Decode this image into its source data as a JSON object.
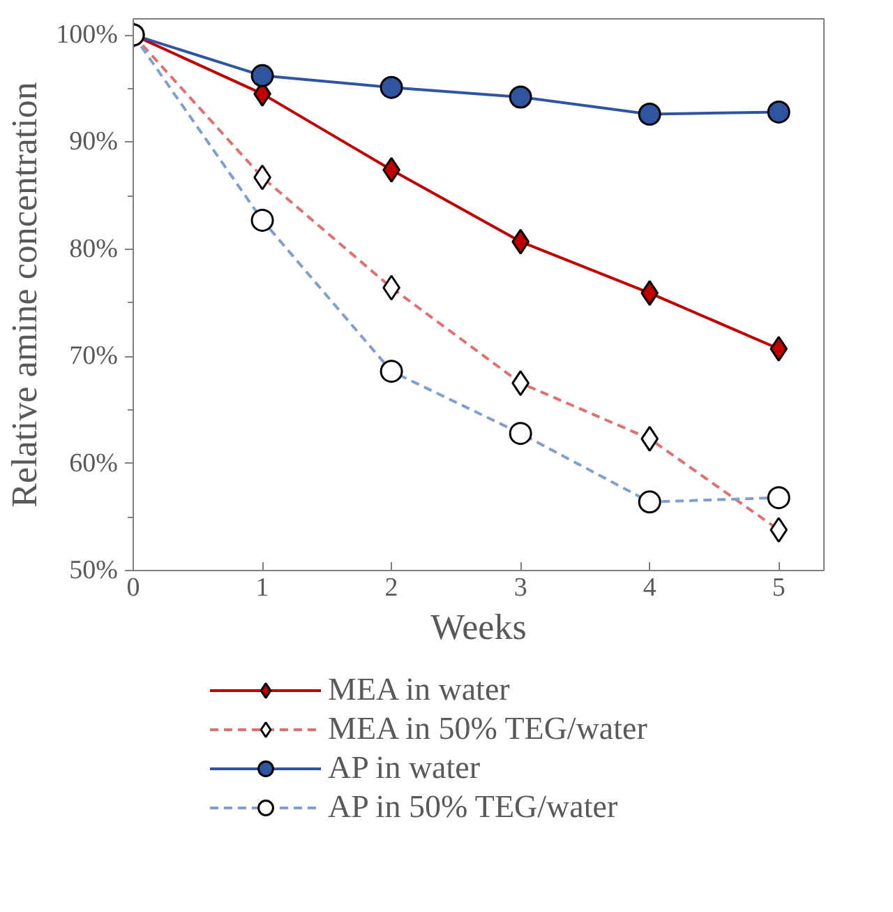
{
  "chart_data": {
    "type": "line",
    "xlabel": "Weeks",
    "ylabel": "Relative amine concentration",
    "x": [
      0,
      1,
      2,
      3,
      4,
      5
    ],
    "series": [
      {
        "name": "MEA in water",
        "color": "#c00000",
        "values": [
          100,
          94.5,
          87.4,
          80.7,
          75.9,
          70.7
        ],
        "marker": "diamond",
        "line_style": "solid"
      },
      {
        "name": "MEA in 50% TEG/water",
        "color": "#e07070",
        "values": [
          100,
          86.7,
          76.4,
          67.5,
          62.3,
          53.8
        ],
        "marker": "diamond",
        "line_style": "dashed"
      },
      {
        "name": "AP in water",
        "color": "#2f55a0",
        "values": [
          100,
          96.2,
          95.1,
          94.2,
          92.6,
          92.8
        ],
        "marker": "circle",
        "line_style": "solid"
      },
      {
        "name": "AP in 50% TEG/water",
        "color": "#7f9fd0",
        "values": [
          100,
          82.7,
          68.6,
          62.8,
          56.4,
          56.8
        ],
        "marker": "circle",
        "line_style": "dashed"
      }
    ],
    "xlim": [
      0,
      5.35
    ],
    "xticks": [
      0,
      1,
      2,
      3,
      4,
      5
    ],
    "ylim": [
      50,
      101.5
    ],
    "yticks": [
      {
        "value": 50,
        "label": "50%"
      },
      {
        "value": 60,
        "label": "60%"
      },
      {
        "value": 70,
        "label": "70%"
      },
      {
        "value": 80,
        "label": "80%"
      },
      {
        "value": 90,
        "label": "90%"
      },
      {
        "value": 100,
        "label": "100%"
      }
    ],
    "grid": false,
    "legend": "bottom"
  }
}
